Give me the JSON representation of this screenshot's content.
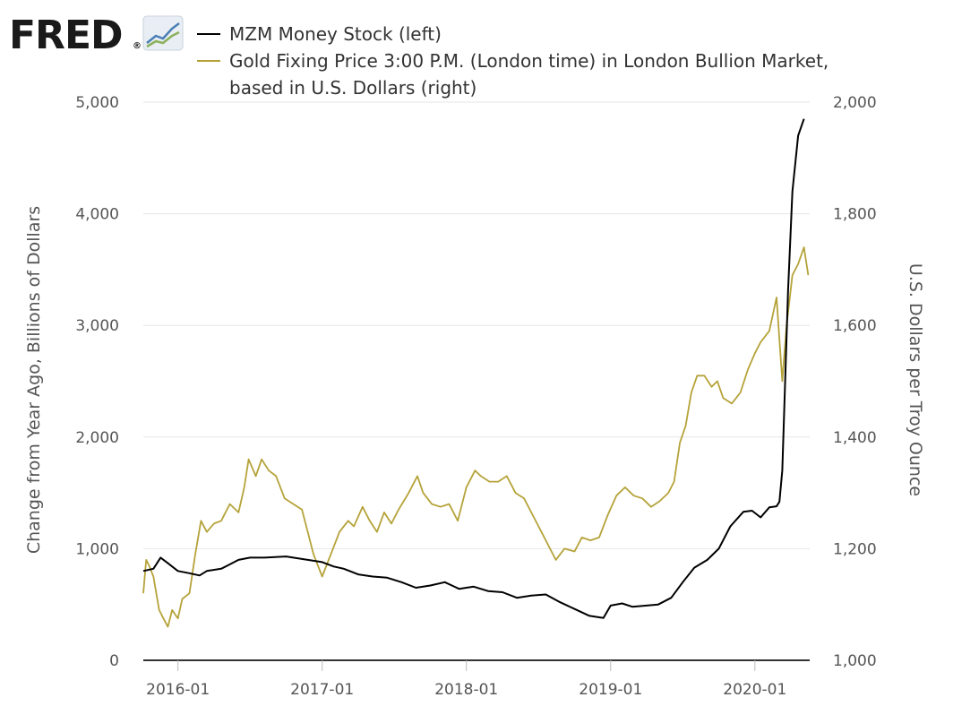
{
  "logo": {
    "text": "FRED",
    "trademark": "®",
    "icon": "line-chart-icon"
  },
  "colors": {
    "series_mzm": "#000000",
    "series_gold": "#b5a33a",
    "grid": "#e6e6e6",
    "axis": "#333333",
    "logo_dark": "#1a1a1a"
  },
  "chart_data": {
    "type": "line",
    "legend": [
      {
        "label": "MZM Money Stock (left)"
      },
      {
        "label_lines": [
          "Gold Fixing Price 3:00 P.M. (London time) in London Bullion Market,",
          "based in U.S. Dollars (right)"
        ]
      }
    ],
    "x_range": [
      2015.76,
      2020.38
    ],
    "x_ticks": [
      {
        "label": "2016-01",
        "value": 2016.0
      },
      {
        "label": "2017-01",
        "value": 2017.0
      },
      {
        "label": "2018-01",
        "value": 2018.0
      },
      {
        "label": "2019-01",
        "value": 2019.0
      },
      {
        "label": "2020-01",
        "value": 2020.0
      }
    ],
    "left_axis": {
      "title": "Change from Year Ago, Billions of Dollars",
      "range": [
        0,
        5000
      ],
      "ticks": [
        {
          "label": "0",
          "value": 0
        },
        {
          "label": "1,000",
          "value": 1000
        },
        {
          "label": "2,000",
          "value": 2000
        },
        {
          "label": "3,000",
          "value": 3000
        },
        {
          "label": "4,000",
          "value": 4000
        },
        {
          "label": "5,000",
          "value": 5000
        }
      ]
    },
    "right_axis": {
      "title": "U.S. Dollars per Troy Ounce",
      "range": [
        1000,
        2000
      ],
      "ticks": [
        {
          "label": "1,000",
          "value": 1000
        },
        {
          "label": "1,200",
          "value": 1200
        },
        {
          "label": "1,400",
          "value": 1400
        },
        {
          "label": "1,600",
          "value": 1600
        },
        {
          "label": "1,800",
          "value": 1800
        },
        {
          "label": "2,000",
          "value": 2000
        }
      ]
    },
    "series": [
      {
        "name": "MZM Money Stock",
        "axis": "left",
        "points": [
          [
            2015.76,
            800
          ],
          [
            2015.83,
            820
          ],
          [
            2015.88,
            920
          ],
          [
            2015.93,
            870
          ],
          [
            2016.0,
            800
          ],
          [
            2016.08,
            780
          ],
          [
            2016.15,
            760
          ],
          [
            2016.2,
            800
          ],
          [
            2016.3,
            820
          ],
          [
            2016.42,
            900
          ],
          [
            2016.5,
            920
          ],
          [
            2016.6,
            920
          ],
          [
            2016.75,
            930
          ],
          [
            2016.85,
            910
          ],
          [
            2017.0,
            880
          ],
          [
            2017.08,
            840
          ],
          [
            2017.15,
            820
          ],
          [
            2017.25,
            770
          ],
          [
            2017.35,
            750
          ],
          [
            2017.45,
            740
          ],
          [
            2017.55,
            700
          ],
          [
            2017.65,
            650
          ],
          [
            2017.75,
            670
          ],
          [
            2017.85,
            700
          ],
          [
            2017.95,
            640
          ],
          [
            2018.05,
            660
          ],
          [
            2018.15,
            620
          ],
          [
            2018.25,
            610
          ],
          [
            2018.35,
            560
          ],
          [
            2018.45,
            580
          ],
          [
            2018.55,
            590
          ],
          [
            2018.65,
            520
          ],
          [
            2018.75,
            460
          ],
          [
            2018.85,
            400
          ],
          [
            2018.95,
            380
          ],
          [
            2019.0,
            490
          ],
          [
            2019.08,
            510
          ],
          [
            2019.15,
            480
          ],
          [
            2019.25,
            490
          ],
          [
            2019.33,
            500
          ],
          [
            2019.42,
            560
          ],
          [
            2019.5,
            700
          ],
          [
            2019.58,
            830
          ],
          [
            2019.67,
            900
          ],
          [
            2019.75,
            1000
          ],
          [
            2019.83,
            1200
          ],
          [
            2019.92,
            1330
          ],
          [
            2019.98,
            1340
          ],
          [
            2020.04,
            1280
          ],
          [
            2020.1,
            1370
          ],
          [
            2020.15,
            1380
          ],
          [
            2020.17,
            1420
          ],
          [
            2020.19,
            1700
          ],
          [
            2020.21,
            2500
          ],
          [
            2020.23,
            3300
          ],
          [
            2020.26,
            4200
          ],
          [
            2020.3,
            4700
          ],
          [
            2020.34,
            4850
          ]
        ]
      },
      {
        "name": "Gold Fixing Price",
        "axis": "right",
        "points": [
          [
            2015.76,
            1120
          ],
          [
            2015.78,
            1180
          ],
          [
            2015.8,
            1170
          ],
          [
            2015.83,
            1150
          ],
          [
            2015.87,
            1090
          ],
          [
            2015.9,
            1075
          ],
          [
            2015.93,
            1060
          ],
          [
            2015.96,
            1090
          ],
          [
            2016.0,
            1075
          ],
          [
            2016.03,
            1110
          ],
          [
            2016.08,
            1120
          ],
          [
            2016.12,
            1190
          ],
          [
            2016.16,
            1250
          ],
          [
            2016.2,
            1230
          ],
          [
            2016.25,
            1245
          ],
          [
            2016.3,
            1250
          ],
          [
            2016.36,
            1280
          ],
          [
            2016.42,
            1265
          ],
          [
            2016.46,
            1310
          ],
          [
            2016.49,
            1360
          ],
          [
            2016.54,
            1330
          ],
          [
            2016.58,
            1360
          ],
          [
            2016.63,
            1340
          ],
          [
            2016.68,
            1330
          ],
          [
            2016.74,
            1290
          ],
          [
            2016.8,
            1280
          ],
          [
            2016.86,
            1270
          ],
          [
            2016.9,
            1230
          ],
          [
            2016.94,
            1190
          ],
          [
            2017.0,
            1150
          ],
          [
            2017.06,
            1190
          ],
          [
            2017.12,
            1230
          ],
          [
            2017.18,
            1250
          ],
          [
            2017.22,
            1240
          ],
          [
            2017.28,
            1275
          ],
          [
            2017.33,
            1250
          ],
          [
            2017.38,
            1230
          ],
          [
            2017.43,
            1265
          ],
          [
            2017.48,
            1245
          ],
          [
            2017.53,
            1270
          ],
          [
            2017.6,
            1300
          ],
          [
            2017.66,
            1330
          ],
          [
            2017.7,
            1300
          ],
          [
            2017.76,
            1280
          ],
          [
            2017.82,
            1275
          ],
          [
            2017.88,
            1280
          ],
          [
            2017.94,
            1250
          ],
          [
            2018.0,
            1310
          ],
          [
            2018.06,
            1340
          ],
          [
            2018.1,
            1330
          ],
          [
            2018.16,
            1320
          ],
          [
            2018.22,
            1320
          ],
          [
            2018.28,
            1330
          ],
          [
            2018.34,
            1300
          ],
          [
            2018.4,
            1290
          ],
          [
            2018.46,
            1260
          ],
          [
            2018.52,
            1230
          ],
          [
            2018.58,
            1200
          ],
          [
            2018.62,
            1180
          ],
          [
            2018.68,
            1200
          ],
          [
            2018.75,
            1195
          ],
          [
            2018.8,
            1220
          ],
          [
            2018.86,
            1215
          ],
          [
            2018.92,
            1220
          ],
          [
            2018.98,
            1260
          ],
          [
            2019.04,
            1295
          ],
          [
            2019.1,
            1310
          ],
          [
            2019.16,
            1295
          ],
          [
            2019.22,
            1290
          ],
          [
            2019.28,
            1275
          ],
          [
            2019.34,
            1285
          ],
          [
            2019.4,
            1300
          ],
          [
            2019.44,
            1320
          ],
          [
            2019.48,
            1390
          ],
          [
            2019.52,
            1420
          ],
          [
            2019.56,
            1480
          ],
          [
            2019.6,
            1510
          ],
          [
            2019.65,
            1510
          ],
          [
            2019.7,
            1490
          ],
          [
            2019.74,
            1500
          ],
          [
            2019.78,
            1470
          ],
          [
            2019.84,
            1460
          ],
          [
            2019.9,
            1480
          ],
          [
            2019.95,
            1520
          ],
          [
            2020.0,
            1550
          ],
          [
            2020.04,
            1570
          ],
          [
            2020.1,
            1590
          ],
          [
            2020.15,
            1650
          ],
          [
            2020.19,
            1500
          ],
          [
            2020.22,
            1600
          ],
          [
            2020.26,
            1690
          ],
          [
            2020.3,
            1710
          ],
          [
            2020.34,
            1740
          ],
          [
            2020.37,
            1690
          ]
        ]
      }
    ]
  }
}
